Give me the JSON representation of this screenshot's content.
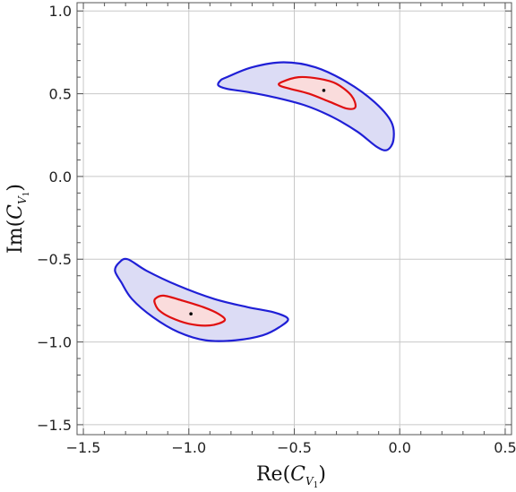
{
  "chart_data": {
    "type": "contour",
    "xlabel": {
      "prefix": "Re(",
      "var": "C",
      "sub": "V",
      "subsub": "1",
      "suffix": ")"
    },
    "ylabel": {
      "prefix": "Im(",
      "var": "C",
      "sub": "V",
      "subsub": "1",
      "suffix": ")"
    },
    "xlim": [
      -1.53,
      0.53
    ],
    "ylim": [
      -1.56,
      1.05
    ],
    "xticks": [
      -1.5,
      -1.0,
      -0.5,
      0.0,
      0.5
    ],
    "xtick_labels": [
      "−1.5",
      "−1.0",
      "−0.5",
      "0.0",
      "0.5"
    ],
    "yticks": [
      -1.5,
      -1.0,
      -0.5,
      0.0,
      0.5,
      1.0
    ],
    "ytick_labels": [
      "−1.5",
      "−1.0",
      "−0.5",
      "0.0",
      "0.5",
      "1.0"
    ],
    "grid": true,
    "colors": {
      "outer_stroke": "#1f1fd6",
      "outer_fill": "#dcdcf5",
      "inner_stroke": "#e01010",
      "inner_fill": "#fadcdc",
      "grid": "#c8c8c8",
      "frame": "#555555"
    },
    "regions": [
      {
        "outer": [
          [
            -0.82,
            0.6
          ],
          [
            -0.7,
            0.66
          ],
          [
            -0.55,
            0.69
          ],
          [
            -0.4,
            0.66
          ],
          [
            -0.25,
            0.57
          ],
          [
            -0.12,
            0.45
          ],
          [
            -0.04,
            0.33
          ],
          [
            -0.03,
            0.22
          ],
          [
            -0.06,
            0.16
          ],
          [
            -0.11,
            0.18
          ],
          [
            -0.2,
            0.27
          ],
          [
            -0.32,
            0.36
          ],
          [
            -0.45,
            0.43
          ],
          [
            -0.6,
            0.48
          ],
          [
            -0.72,
            0.51
          ],
          [
            -0.82,
            0.53
          ],
          [
            -0.86,
            0.55
          ],
          [
            -0.85,
            0.58
          ]
        ],
        "inner": [
          [
            -0.56,
            0.57
          ],
          [
            -0.48,
            0.6
          ],
          [
            -0.38,
            0.59
          ],
          [
            -0.3,
            0.56
          ],
          [
            -0.23,
            0.49
          ],
          [
            -0.21,
            0.42
          ],
          [
            -0.25,
            0.41
          ],
          [
            -0.33,
            0.45
          ],
          [
            -0.43,
            0.5
          ],
          [
            -0.52,
            0.53
          ],
          [
            -0.57,
            0.55
          ]
        ],
        "best_fit": [
          -0.36,
          0.52
        ]
      },
      {
        "outer": [
          [
            -1.33,
            -0.52
          ],
          [
            -1.29,
            -0.5
          ],
          [
            -1.2,
            -0.57
          ],
          [
            -1.05,
            -0.66
          ],
          [
            -0.88,
            -0.74
          ],
          [
            -0.72,
            -0.79
          ],
          [
            -0.6,
            -0.82
          ],
          [
            -0.53,
            -0.86
          ],
          [
            -0.57,
            -0.91
          ],
          [
            -0.65,
            -0.96
          ],
          [
            -0.78,
            -0.99
          ],
          [
            -0.92,
            -0.99
          ],
          [
            -1.05,
            -0.94
          ],
          [
            -1.17,
            -0.85
          ],
          [
            -1.27,
            -0.74
          ],
          [
            -1.32,
            -0.64
          ],
          [
            -1.35,
            -0.57
          ]
        ],
        "inner": [
          [
            -1.16,
            -0.74
          ],
          [
            -1.12,
            -0.72
          ],
          [
            -1.03,
            -0.75
          ],
          [
            -0.93,
            -0.79
          ],
          [
            -0.86,
            -0.83
          ],
          [
            -0.83,
            -0.87
          ],
          [
            -0.9,
            -0.9
          ],
          [
            -1.0,
            -0.89
          ],
          [
            -1.09,
            -0.85
          ],
          [
            -1.14,
            -0.81
          ],
          [
            -1.16,
            -0.77
          ]
        ],
        "best_fit": [
          -0.99,
          -0.83
        ]
      }
    ]
  }
}
